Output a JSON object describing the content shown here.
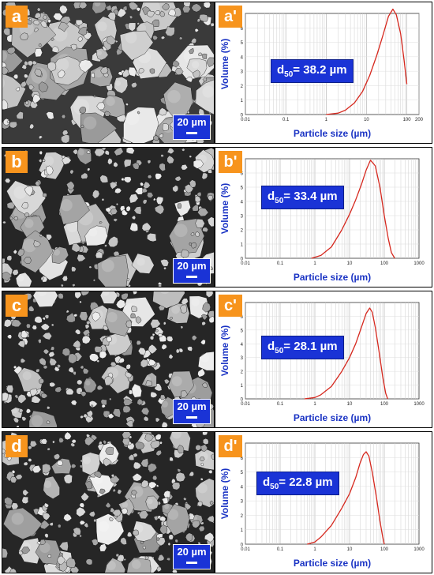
{
  "panels": [
    {
      "sem_label": "a",
      "plot_label": "a'",
      "scale": "20 µm",
      "d50_prefix": "d",
      "d50_sub": "50",
      "d50_value": "= 38.2 µm"
    },
    {
      "sem_label": "b",
      "plot_label": "b'",
      "scale": "20 µm",
      "d50_prefix": "d",
      "d50_sub": "50",
      "d50_value": "= 33.4 µm"
    },
    {
      "sem_label": "c",
      "plot_label": "c'",
      "scale": "20 µm",
      "d50_prefix": "d",
      "d50_sub": "50",
      "d50_value": "= 28.1 µm"
    },
    {
      "sem_label": "d",
      "plot_label": "d'",
      "scale": "20 µm",
      "d50_prefix": "d",
      "d50_sub": "50",
      "d50_value": "= 22.8 µm"
    }
  ],
  "chart_data": [
    {
      "type": "line",
      "xlabel": "Particle size (µm)",
      "ylabel": "Volume (%)",
      "xscale": "log",
      "xlim": [
        0.01,
        200
      ],
      "xticks": [
        "0.01",
        "0.1",
        "1",
        "10",
        "100",
        "200"
      ],
      "yticks": [
        "0",
        "1",
        "2",
        "3",
        "4",
        "5",
        "6"
      ],
      "ylim": [
        0,
        7
      ],
      "series": [
        {
          "x": [
            1.0,
            2,
            3,
            5,
            8,
            12,
            18,
            25,
            35,
            45,
            55,
            70,
            85,
            100
          ],
          "y": [
            0,
            0.1,
            0.3,
            0.8,
            1.6,
            2.7,
            4.1,
            5.4,
            6.8,
            7.3,
            6.9,
            5.6,
            3.8,
            2.1
          ]
        }
      ]
    },
    {
      "type": "line",
      "xlabel": "Particle size (µm)",
      "ylabel": "Volume (%)",
      "xscale": "log",
      "xlim": [
        0.01,
        1000
      ],
      "xticks": [
        "0.01",
        "0.1",
        "1",
        "10",
        "100",
        "1000"
      ],
      "yticks": [
        "0",
        "1",
        "2",
        "3",
        "4",
        "5",
        "6"
      ],
      "ylim": [
        0,
        7
      ],
      "series": [
        {
          "x": [
            0.8,
            1.5,
            3,
            6,
            10,
            15,
            22,
            30,
            40,
            55,
            75,
            100,
            130,
            160,
            200
          ],
          "y": [
            0,
            0.2,
            0.8,
            2.0,
            3.1,
            4.1,
            5.2,
            6.2,
            6.9,
            6.5,
            5.0,
            3.0,
            1.4,
            0.4,
            0
          ]
        }
      ]
    },
    {
      "type": "line",
      "xlabel": "Particle size (µm)",
      "ylabel": "Volume (%)",
      "xscale": "log",
      "xlim": [
        0.01,
        1000
      ],
      "xticks": [
        "0.01",
        "0.1",
        "1",
        "10",
        "100",
        "1000"
      ],
      "yticks": [
        "0",
        "1",
        "2",
        "3",
        "4",
        "5",
        "6"
      ],
      "ylim": [
        0,
        7
      ],
      "series": [
        {
          "x": [
            0.5,
            1,
            1.5,
            3,
            6,
            10,
            15,
            20,
            30,
            38,
            45,
            55,
            70,
            90,
            110,
            125
          ],
          "y": [
            0,
            0.1,
            0.3,
            0.9,
            2.0,
            3.0,
            4.0,
            4.9,
            6.2,
            6.6,
            6.3,
            5.2,
            3.5,
            1.6,
            0.4,
            0
          ]
        }
      ]
    },
    {
      "type": "line",
      "xlabel": "Particle size (µm)",
      "ylabel": "Volume (%)",
      "xscale": "log",
      "xlim": [
        0.01,
        1000
      ],
      "xticks": [
        "0.01",
        "0.1",
        "1",
        "10",
        "100",
        "1000"
      ],
      "yticks": [
        "0",
        "1",
        "2",
        "3",
        "4",
        "5",
        "6"
      ],
      "ylim": [
        0,
        7
      ],
      "series": [
        {
          "x": [
            0.6,
            1,
            1.5,
            3,
            6,
            10,
            15,
            20,
            25,
            30,
            36,
            45,
            60,
            75,
            90,
            100
          ],
          "y": [
            0,
            0.15,
            0.5,
            1.3,
            2.5,
            3.5,
            4.6,
            5.6,
            6.2,
            6.4,
            6.1,
            5.0,
            3.2,
            1.6,
            0.5,
            0
          ]
        }
      ]
    }
  ]
}
